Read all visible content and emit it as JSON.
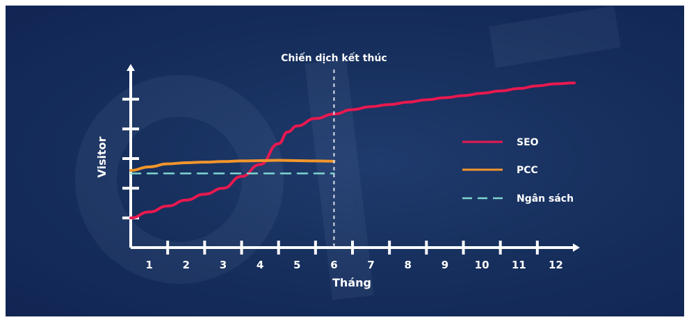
{
  "chart_data": {
    "type": "line",
    "xlabel": "Tháng",
    "ylabel": "Visitor",
    "x": [
      1,
      2,
      3,
      4,
      5,
      6,
      7,
      8,
      9,
      10,
      11,
      12
    ],
    "categories": [
      "1",
      "2",
      "3",
      "4",
      "5",
      "6",
      "7",
      "8",
      "9",
      "10",
      "11",
      "12"
    ],
    "xlim": [
      0.5,
      12.5
    ],
    "ylim": [
      0,
      6
    ],
    "y_ticks": [
      1,
      2,
      3,
      4,
      5
    ],
    "series": [
      {
        "name": "SEO",
        "color": "#e8194f",
        "x": [
          0.5,
          1,
          1.5,
          2,
          2.5,
          3,
          3.5,
          4,
          4.5,
          4.75,
          5,
          5.5,
          6,
          6.5,
          7,
          7.5,
          8,
          8.5,
          9,
          9.5,
          10,
          10.5,
          11,
          11.5,
          12,
          12.5
        ],
        "values": [
          1.0,
          1.2,
          1.4,
          1.6,
          1.8,
          2.0,
          2.4,
          2.8,
          3.5,
          3.9,
          4.1,
          4.35,
          4.5,
          4.65,
          4.75,
          4.82,
          4.9,
          4.98,
          5.05,
          5.12,
          5.2,
          5.28,
          5.36,
          5.45,
          5.52,
          5.55
        ]
      },
      {
        "name": "PCC",
        "color": "#f2962b",
        "x": [
          0.5,
          1,
          1.5,
          2,
          2.5,
          3,
          3.5,
          4,
          4.5,
          5,
          5.5,
          6
        ],
        "values": [
          2.6,
          2.72,
          2.82,
          2.86,
          2.88,
          2.9,
          2.92,
          2.93,
          2.94,
          2.93,
          2.92,
          2.91
        ]
      },
      {
        "name": "Ngân sách",
        "color": "#7fd6cf",
        "x": [
          0.5,
          6
        ],
        "values": [
          2.5,
          2.5
        ],
        "dashed": true
      }
    ],
    "annotations": [
      {
        "text": "Chiến dịch kết thúc",
        "x": 6
      }
    ],
    "legend_position": "right",
    "grid": false,
    "background_color": "#17305e"
  }
}
